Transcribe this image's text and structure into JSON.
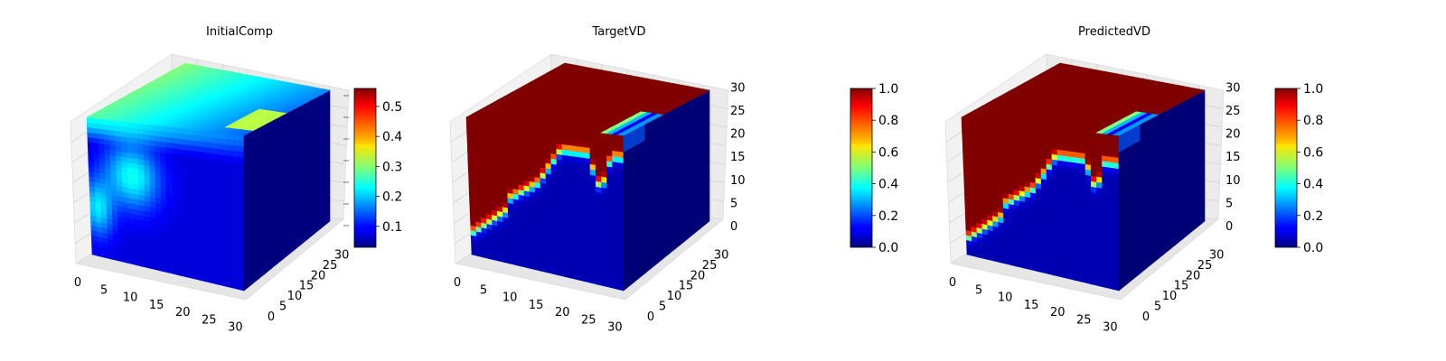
{
  "chart_data": [
    {
      "type": "heatmap",
      "subtype": "3d-voxel",
      "title": "InitialComp",
      "colormap": "jet",
      "grid": true,
      "x_ticks": [
        "0",
        "5",
        "10",
        "15",
        "20",
        "25",
        "30"
      ],
      "y_ticks": [
        "0",
        "5",
        "10",
        "15",
        "20",
        "25",
        "30"
      ],
      "z_ticks": [],
      "z_range": [
        0,
        32
      ],
      "colorbar": {
        "range": [
          0.03,
          0.56
        ],
        "ticks": [
          "0.1",
          "0.2",
          "0.3",
          "0.4",
          "0.5"
        ]
      }
    },
    {
      "type": "heatmap",
      "subtype": "3d-voxel",
      "title": "TargetVD",
      "colormap": "jet",
      "grid": true,
      "x_ticks": [
        "0",
        "5",
        "10",
        "15",
        "20",
        "25",
        "30"
      ],
      "y_ticks": [
        "0",
        "5",
        "10",
        "15",
        "20",
        "25",
        "30"
      ],
      "z_ticks": [
        "0",
        "5",
        "10",
        "15",
        "20",
        "25",
        "30"
      ],
      "z_range": [
        0,
        32
      ],
      "colorbar": {
        "range": [
          0,
          1
        ],
        "ticks": [
          "0.0",
          "0.2",
          "0.4",
          "0.6",
          "0.8",
          "1.0"
        ]
      }
    },
    {
      "type": "heatmap",
      "subtype": "3d-voxel",
      "title": "PredictedVD",
      "colormap": "jet",
      "grid": true,
      "x_ticks": [
        "0",
        "5",
        "10",
        "15",
        "20",
        "25",
        "30"
      ],
      "y_ticks": [
        "0",
        "5",
        "10",
        "15",
        "20",
        "25",
        "30"
      ],
      "z_ticks": [
        "0",
        "5",
        "10",
        "15",
        "20",
        "25",
        "30"
      ],
      "z_range": [
        0,
        32
      ],
      "colorbar": {
        "range": [
          0,
          1
        ],
        "ticks": [
          "0.0",
          "0.2",
          "0.4",
          "0.6",
          "0.8",
          "1.0"
        ]
      }
    }
  ]
}
